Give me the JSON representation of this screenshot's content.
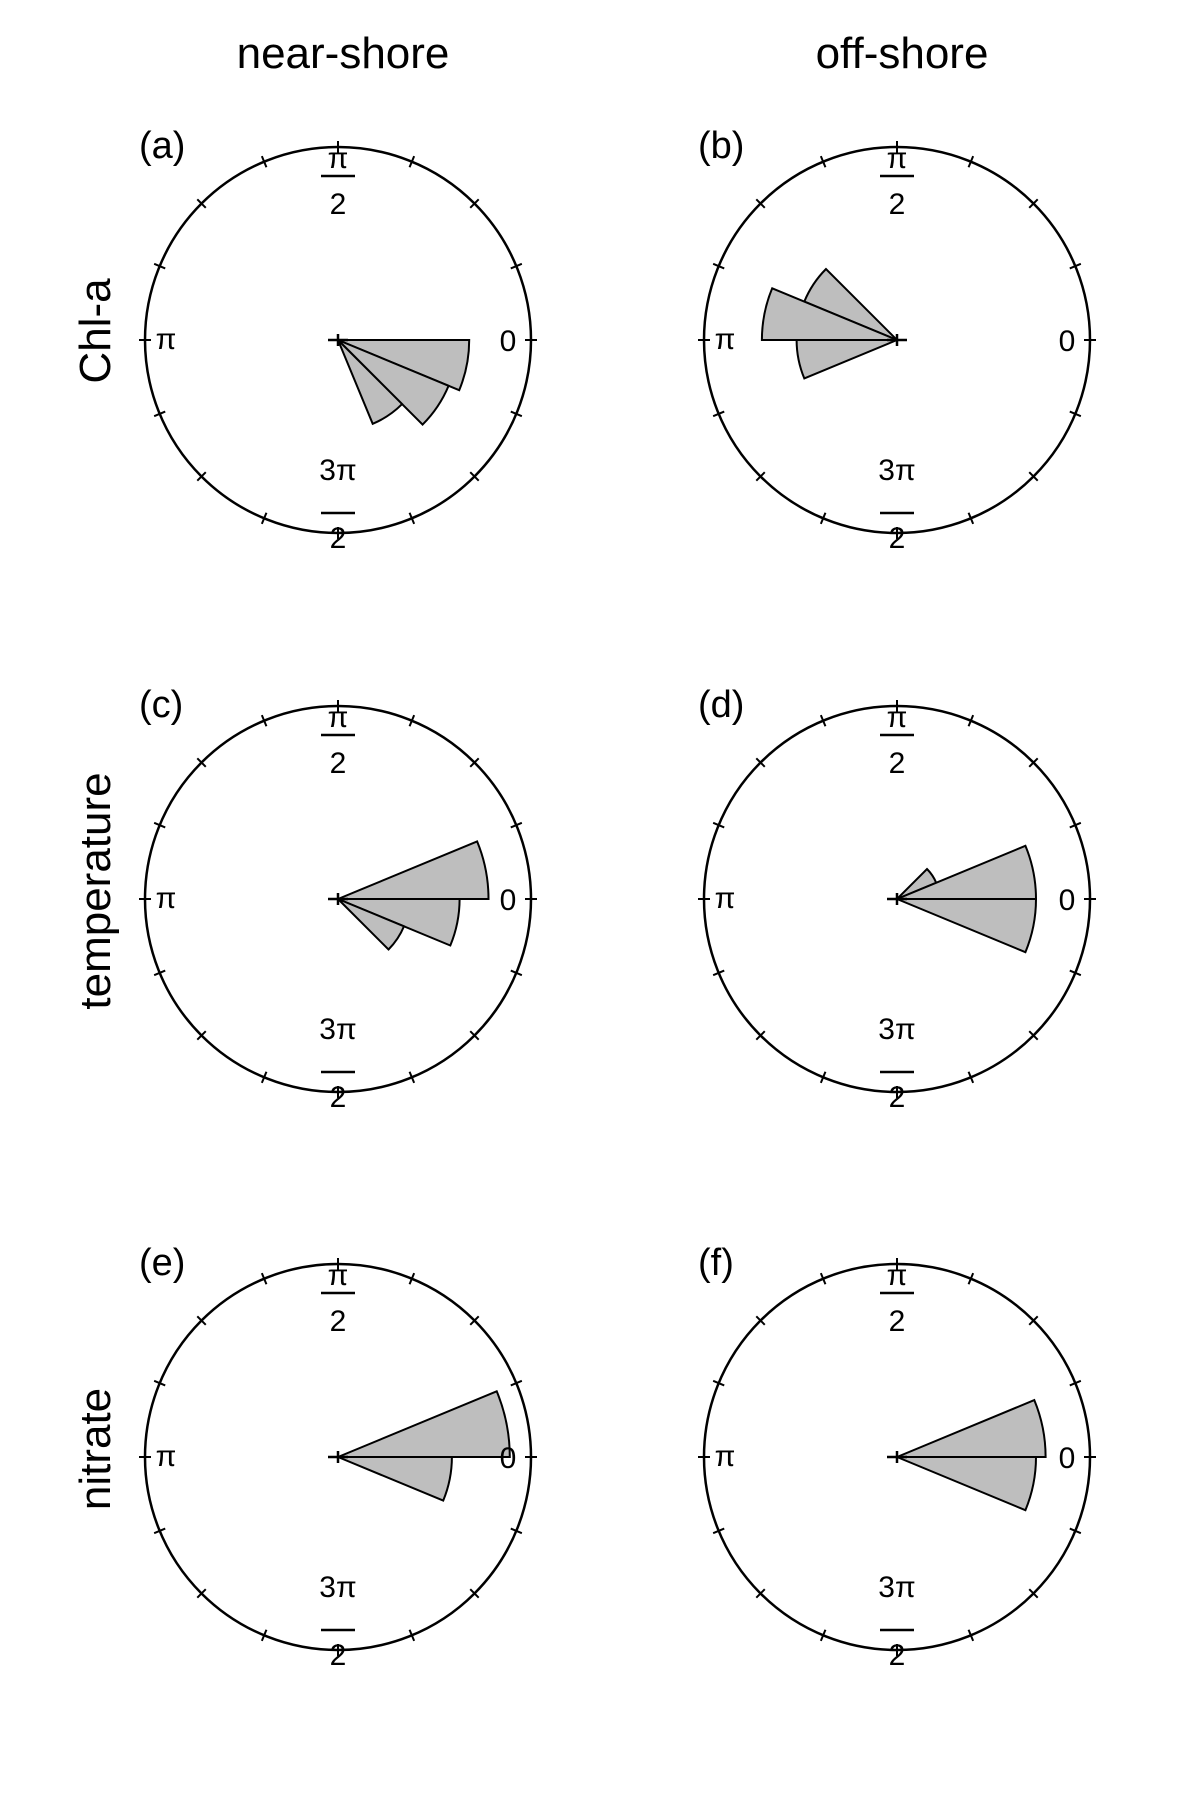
{
  "column_titles": [
    "near-shore",
    "off-shore"
  ],
  "row_titles": [
    "Chl-a",
    "temperature",
    "nitrate"
  ],
  "angle_labels": {
    "zero": "0",
    "half_pi_num": "π",
    "half_pi_den": "2",
    "pi": "π",
    "three_half_pi_num": "3π",
    "three_half_pi_den": "2"
  },
  "colors": {
    "sector_fill": "#bebebe",
    "line": "#000000",
    "background": "#ffffff"
  },
  "chart_data": [
    {
      "type": "rose",
      "panel": "(a)",
      "radial_max": 1.0,
      "bin_width_deg": 22.5,
      "sectors": [
        {
          "start_deg": 0,
          "end_deg": -22.5,
          "radius": 0.68
        },
        {
          "start_deg": -22.5,
          "end_deg": -45,
          "radius": 0.62
        },
        {
          "start_deg": -45,
          "end_deg": -67.5,
          "radius": 0.47
        }
      ]
    },
    {
      "type": "rose",
      "panel": "(b)",
      "radial_max": 1.0,
      "bin_width_deg": 22.5,
      "sectors": [
        {
          "start_deg": 135,
          "end_deg": 157.5,
          "radius": 0.52
        },
        {
          "start_deg": 157.5,
          "end_deg": 180,
          "radius": 0.7
        },
        {
          "start_deg": 180,
          "end_deg": 202.5,
          "radius": 0.52
        }
      ]
    },
    {
      "type": "rose",
      "panel": "(c)",
      "radial_max": 1.0,
      "bin_width_deg": 22.5,
      "sectors": [
        {
          "start_deg": 22.5,
          "end_deg": 0,
          "radius": 0.78
        },
        {
          "start_deg": 0,
          "end_deg": -22.5,
          "radius": 0.63
        },
        {
          "start_deg": -22.5,
          "end_deg": -45,
          "radius": 0.37
        }
      ]
    },
    {
      "type": "rose",
      "panel": "(d)",
      "radial_max": 1.0,
      "bin_width_deg": 22.5,
      "sectors": [
        {
          "start_deg": 45,
          "end_deg": 22.5,
          "radius": 0.22
        },
        {
          "start_deg": 22.5,
          "end_deg": 0,
          "radius": 0.72
        },
        {
          "start_deg": 0,
          "end_deg": -22.5,
          "radius": 0.72
        }
      ]
    },
    {
      "type": "rose",
      "panel": "(e)",
      "radial_max": 1.0,
      "bin_width_deg": 22.5,
      "sectors": [
        {
          "start_deg": 22.5,
          "end_deg": 0,
          "radius": 0.89
        },
        {
          "start_deg": 0,
          "end_deg": -22.5,
          "radius": 0.59
        }
      ]
    },
    {
      "type": "rose",
      "panel": "(f)",
      "radial_max": 1.0,
      "bin_width_deg": 22.5,
      "sectors": [
        {
          "start_deg": 22.5,
          "end_deg": 0,
          "radius": 0.77
        },
        {
          "start_deg": 0,
          "end_deg": -22.5,
          "radius": 0.72
        }
      ]
    }
  ]
}
